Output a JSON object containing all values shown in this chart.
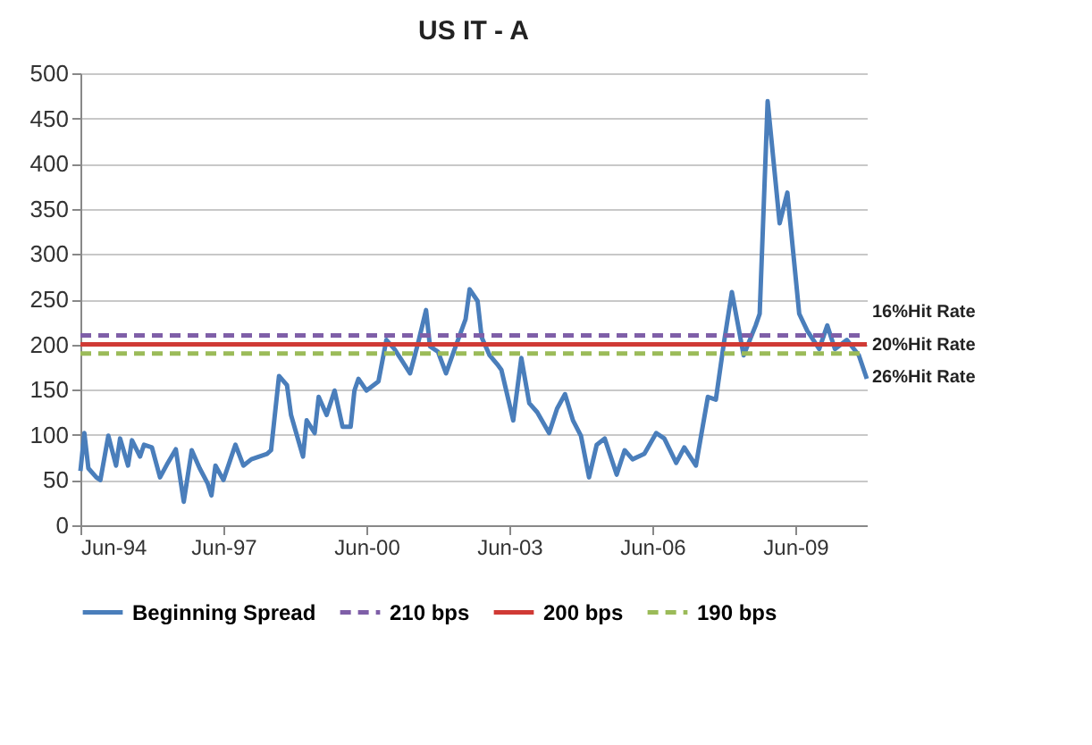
{
  "chart_data": {
    "type": "line",
    "title": "US IT - A",
    "legend": "bottom",
    "grid": "y",
    "marker": "none",
    "xlim": [
      "1994-06",
      "2010-12"
    ],
    "ylim": [
      0,
      500
    ],
    "xticks": [
      {
        "value": "1994-06",
        "label": "Jun-94"
      },
      {
        "value": "1997-06",
        "label": "Jun-97"
      },
      {
        "value": "2000-06",
        "label": "Jun-00"
      },
      {
        "value": "2003-06",
        "label": "Jun-03"
      },
      {
        "value": "2006-06",
        "label": "Jun-06"
      },
      {
        "value": "2009-06",
        "label": "Jun-09"
      }
    ],
    "yticks": [
      0,
      50,
      100,
      150,
      200,
      250,
      300,
      350,
      400,
      450,
      500
    ],
    "series": [
      {
        "name": "Beginning Spread",
        "color": "#4a7ebb",
        "line_style": "solid",
        "x": [
          "1994-06",
          "1994-07",
          "1994-08",
          "1994-10",
          "1994-11",
          "1995-01",
          "1995-03",
          "1995-04",
          "1995-06",
          "1995-07",
          "1995-09",
          "1995-10",
          "1995-12",
          "1996-02",
          "1996-04",
          "1996-06",
          "1996-08",
          "1996-10",
          "1996-12",
          "1997-02",
          "1997-03",
          "1997-04",
          "1997-06",
          "1997-08",
          "1997-09",
          "1997-11",
          "1998-01",
          "1998-05",
          "1998-06",
          "1998-08",
          "1998-10",
          "1998-11",
          "1999-02",
          "1999-03",
          "1999-05",
          "1999-06",
          "1999-08",
          "1999-10",
          "1999-12",
          "2000-02",
          "2000-03",
          "2000-04",
          "2000-06",
          "2000-09",
          "2000-11",
          "2001-01",
          "2001-03",
          "2001-05",
          "2001-07",
          "2001-09",
          "2001-10",
          "2001-12",
          "2002-02",
          "2002-04",
          "2002-07",
          "2002-08",
          "2002-10",
          "2002-11",
          "2003-01",
          "2003-03",
          "2003-04",
          "2003-07",
          "2003-09",
          "2003-11",
          "2004-01",
          "2004-04",
          "2004-06",
          "2004-08",
          "2004-10",
          "2004-12",
          "2005-02",
          "2005-04",
          "2005-06",
          "2005-09",
          "2005-11",
          "2006-01",
          "2006-04",
          "2006-07",
          "2006-09",
          "2006-12",
          "2007-02",
          "2007-05",
          "2007-08",
          "2007-10",
          "2007-12",
          "2008-02",
          "2008-05",
          "2008-08",
          "2008-09",
          "2008-11",
          "2009-02",
          "2009-04",
          "2009-07",
          "2009-09",
          "2009-12",
          "2010-02",
          "2010-04",
          "2010-07",
          "2010-10",
          "2010-12"
        ],
        "values": [
          60,
          102,
          63,
          53,
          50,
          99,
          66,
          96,
          66,
          94,
          76,
          89,
          86,
          53,
          69,
          84,
          26,
          83,
          63,
          46,
          33,
          66,
          50,
          76,
          89,
          66,
          73,
          79,
          83,
          165,
          155,
          122,
          76,
          116,
          102,
          142,
          122,
          149,
          109,
          109,
          149,
          162,
          149,
          159,
          205,
          195,
          182,
          168,
          201,
          238,
          198,
          192,
          168,
          192,
          228,
          261,
          248,
          208,
          188,
          178,
          172,
          116,
          185,
          135,
          125,
          102,
          129,
          145,
          116,
          99,
          53,
          89,
          96,
          56,
          83,
          73,
          79,
          102,
          96,
          69,
          86,
          66,
          142,
          139,
          201,
          258,
          188,
          221,
          234,
          469,
          334,
          368,
          234,
          215,
          195,
          221,
          195,
          205,
          188,
          162
        ]
      },
      {
        "name": "210 bps",
        "color": "#7f5fa8",
        "line_style": "dashed",
        "x": [
          "1994-06",
          "2010-12"
        ],
        "values": [
          210,
          210
        ]
      },
      {
        "name": "200 bps",
        "color": "#d03a35",
        "line_style": "solid",
        "x": [
          "1994-06",
          "2010-12"
        ],
        "values": [
          200,
          200
        ]
      },
      {
        "name": "190 bps",
        "color": "#9bbb59",
        "line_style": "dashed",
        "x": [
          "1994-06",
          "2010-12"
        ],
        "values": [
          190,
          190
        ]
      }
    ],
    "annotations": [
      {
        "text": "16%Hit Rate",
        "x": "2010-12",
        "y": 210
      },
      {
        "text": "20%Hit Rate",
        "x": "2010-12",
        "y": 200
      },
      {
        "text": "26%Hit Rate",
        "x": "2010-12",
        "y": 190
      }
    ]
  }
}
